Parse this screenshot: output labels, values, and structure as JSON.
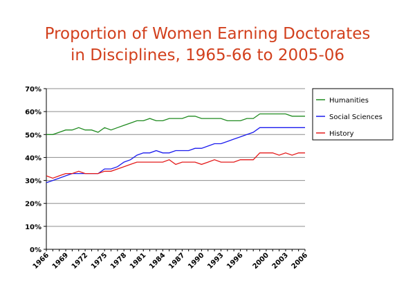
{
  "chart_data": {
    "type": "line",
    "title_lines": [
      "Proportion of Women Earning Doctorates",
      "in Disciplines, 1965-66 to 2005-06"
    ],
    "xlabel": "",
    "ylabel": "",
    "x": [
      1966,
      1967,
      1968,
      1969,
      1970,
      1971,
      1972,
      1973,
      1974,
      1975,
      1976,
      1977,
      1978,
      1979,
      1980,
      1981,
      1982,
      1983,
      1984,
      1985,
      1986,
      1987,
      1988,
      1989,
      1990,
      1991,
      1992,
      1993,
      1994,
      1995,
      1996,
      1997,
      1998,
      1999,
      2000,
      2001,
      2002,
      2003,
      2004,
      2005,
      2006
    ],
    "x_tick_labels": [
      "1966",
      "1969",
      "1972",
      "1975",
      "1978",
      "1981",
      "1984",
      "1987",
      "1990",
      "1993",
      "1996",
      "2000",
      "2003",
      "2006"
    ],
    "x_tick_years": [
      1966,
      1969,
      1972,
      1975,
      1978,
      1981,
      1984,
      1987,
      1990,
      1993,
      1996,
      2000,
      2003,
      2006
    ],
    "y_tick_labels": [
      "0%",
      "10%",
      "20%",
      "30%",
      "40%",
      "50%",
      "60%",
      "70%"
    ],
    "y_ticks": [
      0,
      10,
      20,
      30,
      40,
      50,
      60,
      70
    ],
    "ylim": [
      0,
      70
    ],
    "grid": "horizontal",
    "legend_position": "right",
    "series": [
      {
        "name": "Humanities",
        "color": "#1f8a1f",
        "values": [
          50,
          50,
          51,
          52,
          52,
          53,
          52,
          52,
          51,
          53,
          52,
          53,
          54,
          55,
          56,
          56,
          57,
          56,
          56,
          57,
          57,
          57,
          58,
          58,
          57,
          57,
          57,
          57,
          56,
          56,
          56,
          57,
          57,
          59,
          59,
          59,
          59,
          59,
          58,
          58,
          58
        ]
      },
      {
        "name": "Social Sciences",
        "color": "#1a1aee",
        "values": [
          29,
          30,
          31,
          32,
          33,
          33,
          33,
          33,
          33,
          35,
          35,
          36,
          38,
          39,
          41,
          42,
          42,
          43,
          42,
          42,
          43,
          43,
          43,
          44,
          44,
          45,
          46,
          46,
          47,
          48,
          49,
          50,
          51,
          53,
          53,
          53,
          53,
          53,
          53,
          53,
          53
        ]
      },
      {
        "name": "History",
        "color": "#e41a1a",
        "values": [
          32,
          31,
          32,
          33,
          33,
          34,
          33,
          33,
          33,
          34,
          34,
          35,
          36,
          37,
          38,
          38,
          38,
          38,
          38,
          39,
          37,
          38,
          38,
          38,
          37,
          38,
          39,
          38,
          38,
          38,
          39,
          39,
          39,
          42,
          42,
          42,
          41,
          42,
          41,
          42,
          42
        ]
      }
    ]
  }
}
